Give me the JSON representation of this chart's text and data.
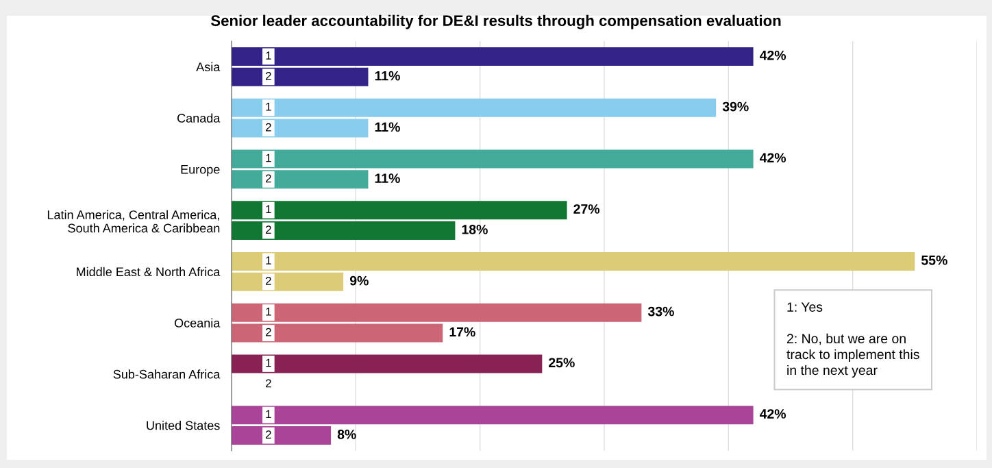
{
  "chart_data": {
    "type": "bar",
    "orientation": "horizontal",
    "title": "Senior leader accountability for DE&I results through compensation evaluation",
    "categories": [
      "Asia",
      "Canada",
      "Europe",
      "Latin America, Central America,\nSouth America & Caribbean",
      "Middle East & North Africa",
      "Oceania",
      "Sub-Saharan Africa",
      "United States"
    ],
    "series": [
      {
        "name": "1",
        "colors": [
          "#332288",
          "#88ccee",
          "#44aa99",
          "#117733",
          "#ddcc77",
          "#cc6677",
          "#882255",
          "#aa4499"
        ],
        "values": [
          42,
          39,
          42,
          27,
          55,
          33,
          25,
          42
        ],
        "value_labels": [
          "42%",
          "39%",
          "42%",
          "27%",
          "55%",
          "33%",
          "25%",
          "42%"
        ]
      },
      {
        "name": "2",
        "colors": [
          "#332288",
          "#88ccee",
          "#44aa99",
          "#117733",
          "#ddcc77",
          "#cc6677",
          "#882255",
          "#aa4499"
        ],
        "values": [
          11,
          11,
          11,
          18,
          9,
          17,
          null,
          8
        ],
        "value_labels": [
          "11%",
          "11%",
          "11%",
          "18%",
          "9%",
          "17%",
          null,
          "8%"
        ]
      }
    ],
    "xlim": [
      0,
      60
    ],
    "xticks": [
      {
        "value": 0,
        "label": null
      },
      {
        "value": 10,
        "label": null
      },
      {
        "value": 20,
        "label": null
      },
      {
        "value": 30,
        "label": null
      },
      {
        "value": 40,
        "label": null
      },
      {
        "value": 50,
        "label": null
      },
      {
        "value": 60,
        "label": null
      }
    ],
    "grid": "x",
    "tick_labels": "y",
    "annotations": [
      "1: Yes\n\n2: No, but we are on\ntrack to implement this\nin the next year"
    ]
  }
}
